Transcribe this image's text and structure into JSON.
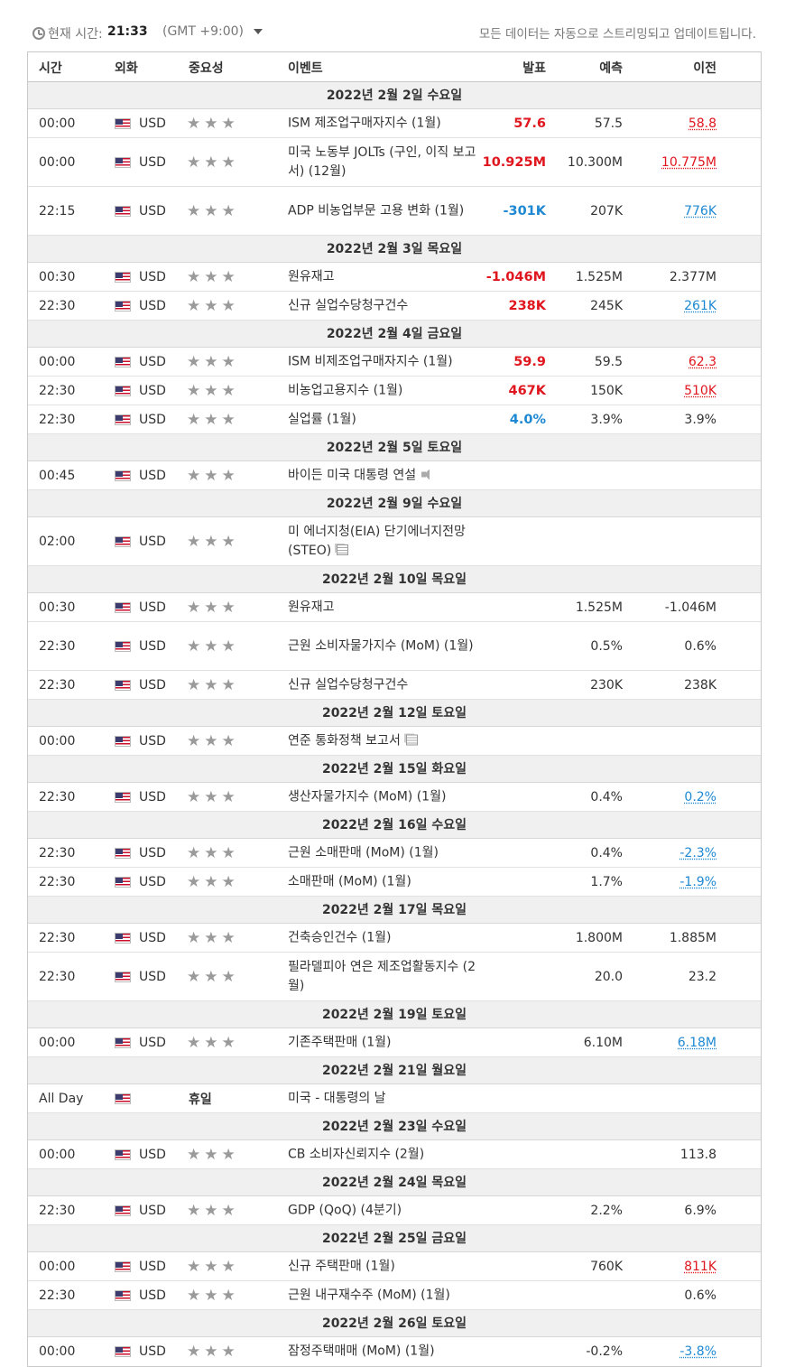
{
  "top": {
    "time_label": "현재 시간:",
    "time_value": "21:33",
    "timezone": "(GMT +9:00)",
    "note": "모든 데이터는 자동으로 스트리밍되고 업데이트됩니다."
  },
  "columns": {
    "time": "시간",
    "currency": "외화",
    "importance": "중요성",
    "event": "이벤트",
    "actual": "발표",
    "forecast": "예측",
    "previous": "이전"
  },
  "stars": "★★★",
  "sections": [
    {
      "date": "2022년 2월 2일 수요일",
      "rows": [
        {
          "time": "00:00",
          "cur": "USD",
          "event": "ISM 제조업구매자지수 (1월)",
          "actual": "57.6",
          "actual_color": "red",
          "forecast": "57.5",
          "previous": "58.8",
          "previous_color": "red"
        },
        {
          "time": "00:00",
          "cur": "USD",
          "event": "미국 노동부 JOLTs (구인, 이직 보고서) (12월)",
          "actual": "10.925M",
          "actual_color": "red",
          "forecast": "10.300M",
          "previous": "10.775M",
          "previous_color": "red",
          "tall": true
        },
        {
          "time": "22:15",
          "cur": "USD",
          "event": "ADP 비농업부문 고용 변화 (1월)",
          "actual": "-301K",
          "actual_color": "blue",
          "forecast": "207K",
          "previous": "776K",
          "previous_color": "blue",
          "tall": true
        }
      ]
    },
    {
      "date": "2022년 2월 3일 목요일",
      "rows": [
        {
          "time": "00:30",
          "cur": "USD",
          "event": "원유재고",
          "actual": "-1.046M",
          "actual_color": "red",
          "forecast": "1.525M",
          "previous": "2.377M"
        },
        {
          "time": "22:30",
          "cur": "USD",
          "event": "신규 실업수당청구건수",
          "actual": "238K",
          "actual_color": "red",
          "forecast": "245K",
          "previous": "261K",
          "previous_color": "blue"
        }
      ]
    },
    {
      "date": "2022년 2월 4일 금요일",
      "rows": [
        {
          "time": "00:00",
          "cur": "USD",
          "event": "ISM 비제조업구매자지수 (1월)",
          "actual": "59.9",
          "actual_color": "red",
          "forecast": "59.5",
          "previous": "62.3",
          "previous_color": "red"
        },
        {
          "time": "22:30",
          "cur": "USD",
          "event": "비농업고용지수 (1월)",
          "actual": "467K",
          "actual_color": "red",
          "forecast": "150K",
          "previous": "510K",
          "previous_color": "red"
        },
        {
          "time": "22:30",
          "cur": "USD",
          "event": "실업률 (1월)",
          "actual": "4.0%",
          "actual_color": "blue",
          "forecast": "3.9%",
          "previous": "3.9%"
        }
      ]
    },
    {
      "date": "2022년 2월 5일 토요일",
      "rows": [
        {
          "time": "00:45",
          "cur": "USD",
          "event": "바이든 미국 대통령 연설",
          "icon": "speaker-icon"
        }
      ]
    },
    {
      "date": "2022년 2월 9일 수요일",
      "rows": [
        {
          "time": "02:00",
          "cur": "USD",
          "event": "미 에너지청(EIA) 단기에너지전망(STEO)",
          "icon": "document-icon",
          "tall": true
        }
      ]
    },
    {
      "date": "2022년 2월 10일 목요일",
      "rows": [
        {
          "time": "00:30",
          "cur": "USD",
          "event": "원유재고",
          "forecast": "1.525M",
          "previous": "-1.046M"
        },
        {
          "time": "22:30",
          "cur": "USD",
          "event": "근원 소비자물가지수 (MoM) (1월)",
          "forecast": "0.5%",
          "previous": "0.6%",
          "tall": true
        },
        {
          "time": "22:30",
          "cur": "USD",
          "event": "신규 실업수당청구건수",
          "forecast": "230K",
          "previous": "238K"
        }
      ]
    },
    {
      "date": "2022년 2월 12일 토요일",
      "rows": [
        {
          "time": "00:00",
          "cur": "USD",
          "event": "연준 통화정책 보고서",
          "icon": "document-icon"
        }
      ]
    },
    {
      "date": "2022년 2월 15일 화요일",
      "rows": [
        {
          "time": "22:30",
          "cur": "USD",
          "event": "생산자물가지수 (MoM) (1월)",
          "forecast": "0.4%",
          "previous": "0.2%",
          "previous_color": "blue"
        }
      ]
    },
    {
      "date": "2022년 2월 16일 수요일",
      "rows": [
        {
          "time": "22:30",
          "cur": "USD",
          "event": "근원 소매판매 (MoM) (1월)",
          "forecast": "0.4%",
          "previous": "-2.3%",
          "previous_color": "blue"
        },
        {
          "time": "22:30",
          "cur": "USD",
          "event": "소매판매 (MoM) (1월)",
          "forecast": "1.7%",
          "previous": "-1.9%",
          "previous_color": "blue"
        }
      ]
    },
    {
      "date": "2022년 2월 17일 목요일",
      "rows": [
        {
          "time": "22:30",
          "cur": "USD",
          "event": "건축승인건수 (1월)",
          "forecast": "1.800M",
          "previous": "1.885M"
        },
        {
          "time": "22:30",
          "cur": "USD",
          "event": "필라델피아 연은 제조업활동지수 (2월)",
          "forecast": "20.0",
          "previous": "23.2",
          "tall": true
        }
      ]
    },
    {
      "date": "2022년 2월 19일 토요일",
      "rows": [
        {
          "time": "00:00",
          "cur": "USD",
          "event": "기존주택판매 (1월)",
          "forecast": "6.10M",
          "previous": "6.18M",
          "previous_color": "blue"
        }
      ]
    },
    {
      "date": "2022년 2월 21일 월요일",
      "rows": [
        {
          "time": "All Day",
          "cur": "",
          "holiday": "휴일",
          "event": "미국 - 대통령의 날"
        }
      ]
    },
    {
      "date": "2022년 2월 23일 수요일",
      "rows": [
        {
          "time": "00:00",
          "cur": "USD",
          "event": "CB 소비자신뢰지수 (2월)",
          "previous": "113.8"
        }
      ]
    },
    {
      "date": "2022년 2월 24일 목요일",
      "rows": [
        {
          "time": "22:30",
          "cur": "USD",
          "event": "GDP (QoQ) (4분기)",
          "forecast": "2.2%",
          "previous": "6.9%"
        }
      ]
    },
    {
      "date": "2022년 2월 25일 금요일",
      "rows": [
        {
          "time": "00:00",
          "cur": "USD",
          "event": "신규 주택판매 (1월)",
          "forecast": "760K",
          "previous": "811K",
          "previous_color": "red"
        },
        {
          "time": "22:30",
          "cur": "USD",
          "event": "근원 내구재수주 (MoM) (1월)",
          "previous": "0.6%"
        }
      ]
    },
    {
      "date": "2022년 2월 26일 토요일",
      "rows": [
        {
          "time": "00:00",
          "cur": "USD",
          "event": "잠정주택매매 (MoM) (1월)",
          "forecast": "-0.2%",
          "previous": "-3.8%",
          "previous_color": "blue"
        }
      ]
    }
  ]
}
